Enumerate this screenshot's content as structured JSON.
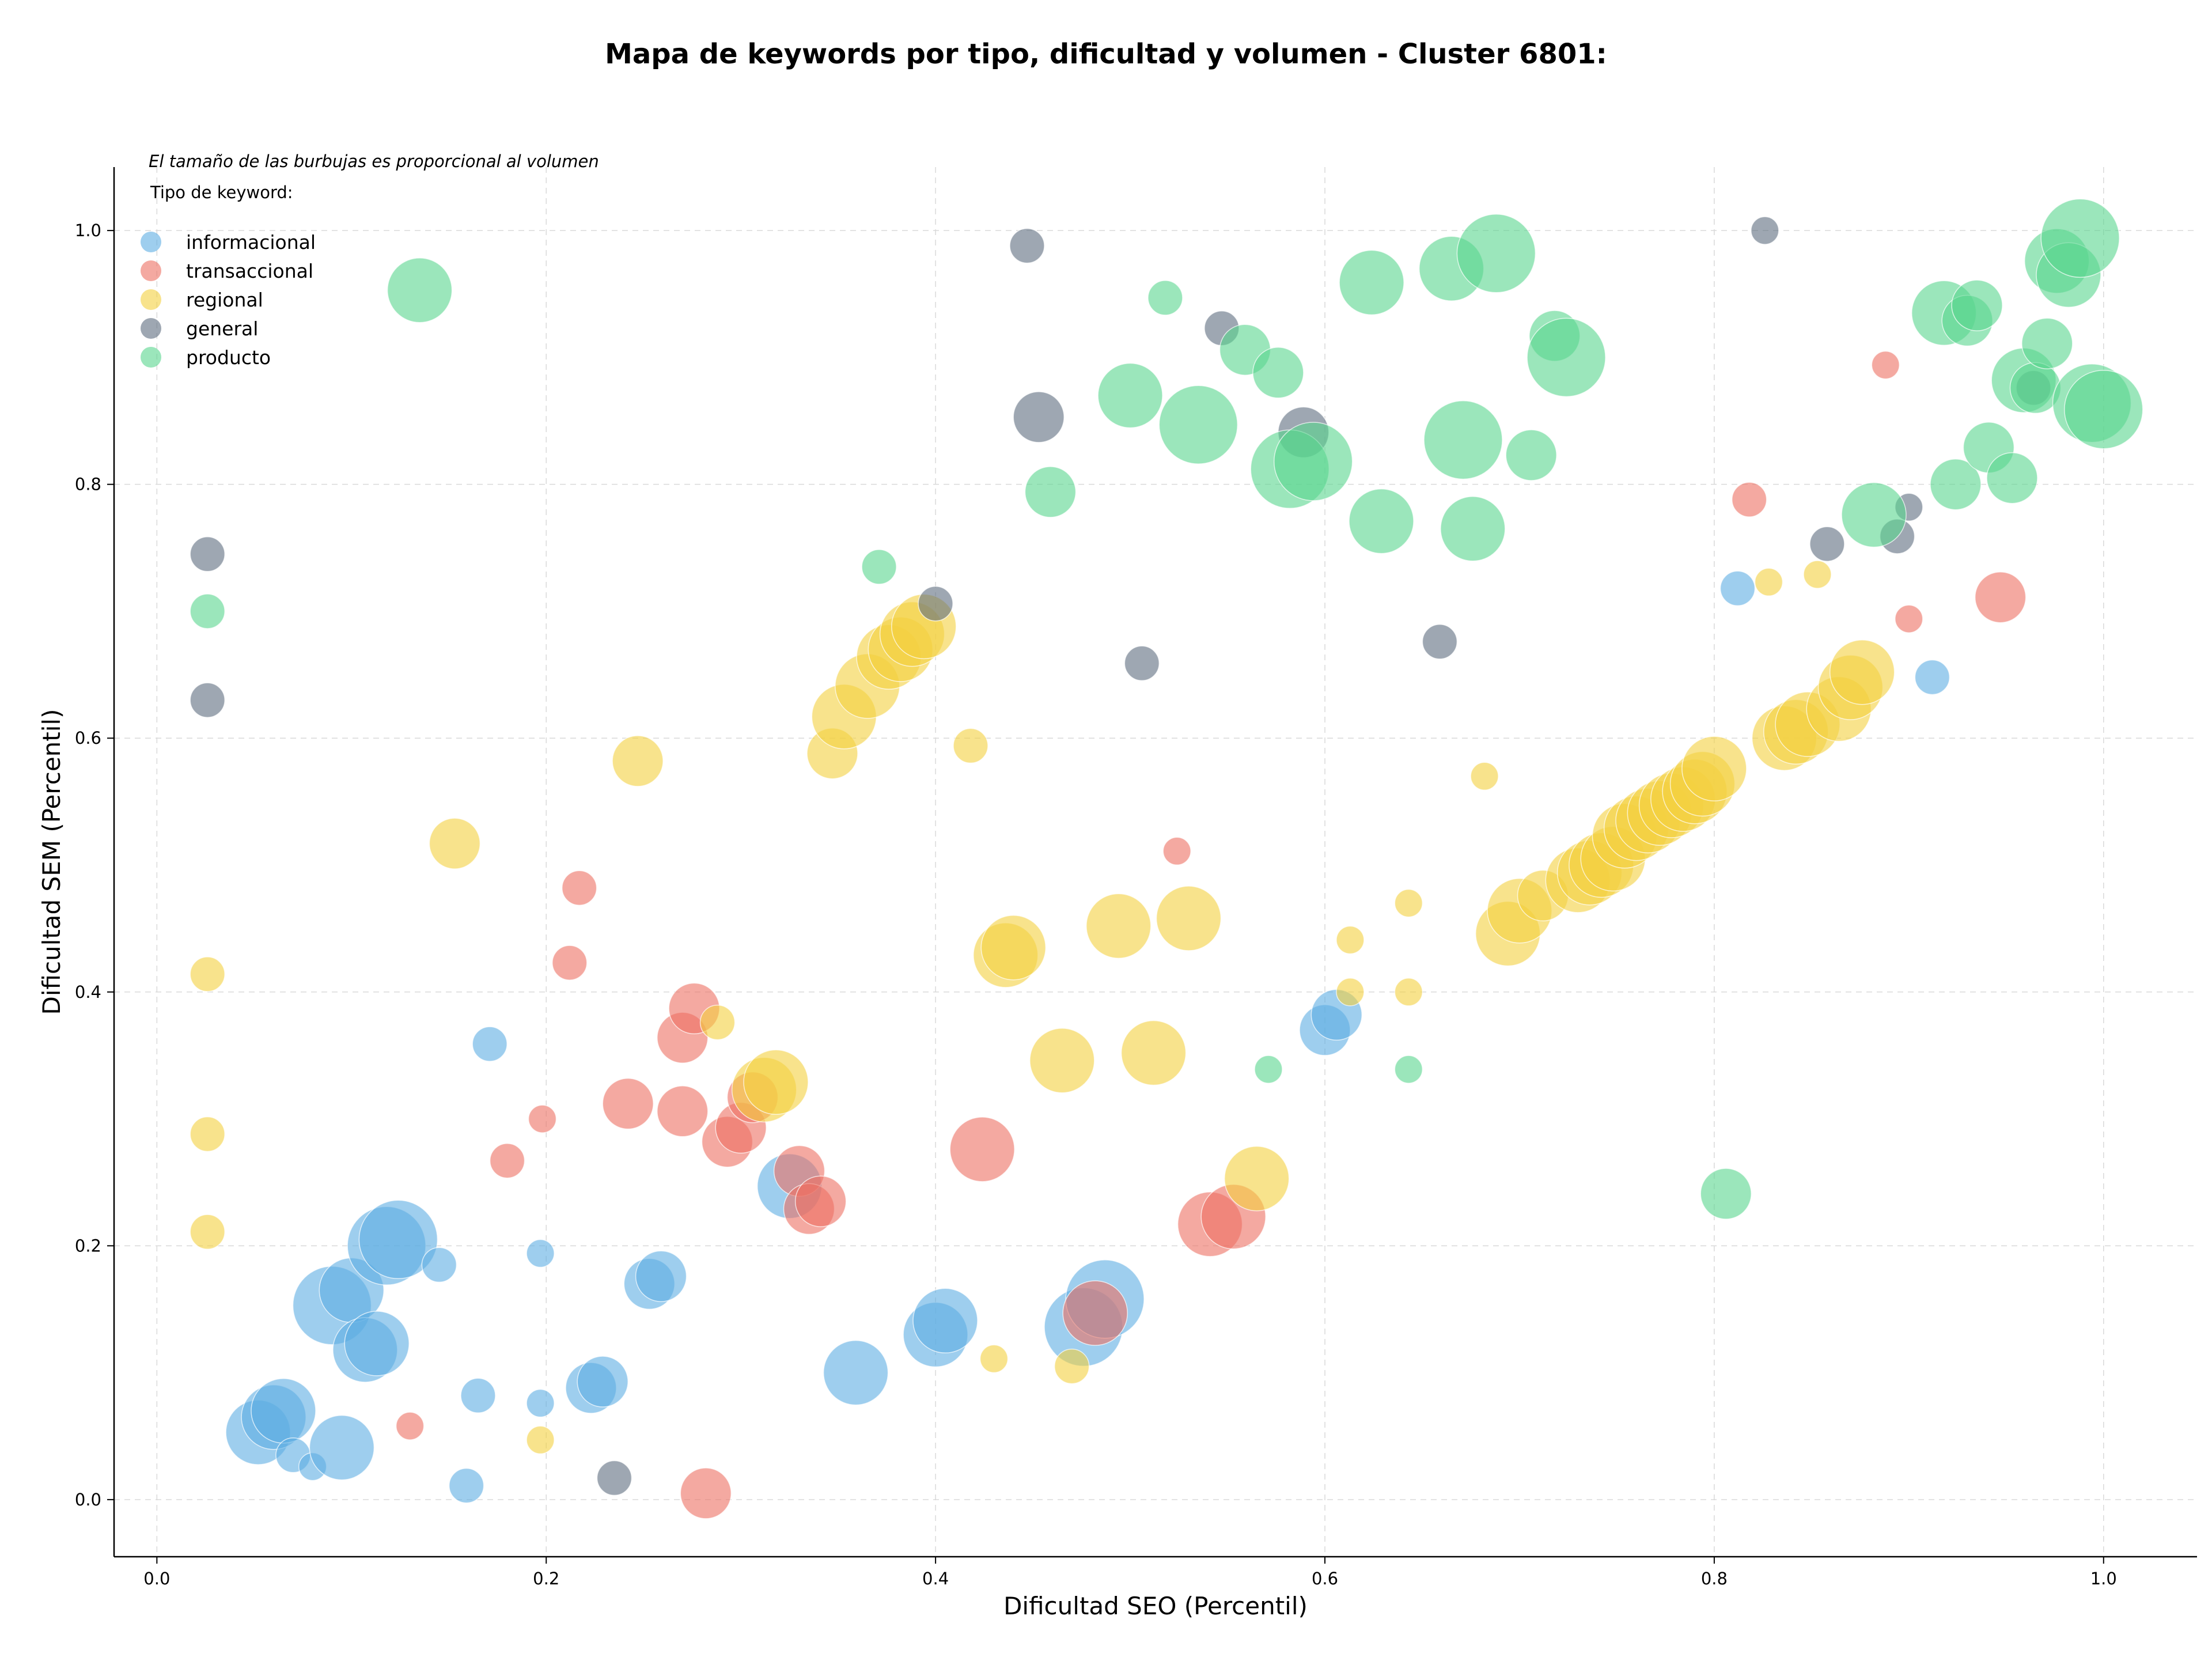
{
  "chart_data": {
    "type": "scatter",
    "title": "Mapa de keywords por tipo, dificultad y volumen - Cluster 6801:",
    "xlabel": "Dificultad SEO (Percentil)",
    "ylabel": "Dificultad SEM (Percentil)",
    "xlim": [
      -0.022,
      1.048
    ],
    "ylim": [
      -0.045,
      1.05
    ],
    "x_ticks": [
      "0.0",
      "0.2",
      "0.4",
      "0.6",
      "0.8",
      "1.0"
    ],
    "y_ticks": [
      "0.0",
      "0.2",
      "0.4",
      "0.6",
      "0.8",
      "1.0"
    ],
    "grid": true,
    "note": "El tamaño de las burbujas es proporcional al volumen",
    "legend_title": "Tipo de keyword:",
    "legend_position": "top-left",
    "size_encoding": "volume",
    "series": [
      {
        "name": "informacional",
        "color": "#5dade2",
        "points": [
          [
            0.09,
            0.153,
            5
          ],
          [
            0.1,
            0.165,
            4
          ],
          [
            0.118,
            0.2,
            5
          ],
          [
            0.124,
            0.205,
            5
          ],
          [
            0.107,
            0.118,
            4
          ],
          [
            0.113,
            0.123,
            4
          ],
          [
            0.052,
            0.053,
            4
          ],
          [
            0.06,
            0.065,
            4
          ],
          [
            0.065,
            0.07,
            4
          ],
          [
            0.07,
            0.035,
            2
          ],
          [
            0.08,
            0.026,
            1
          ],
          [
            0.095,
            0.041,
            4
          ],
          [
            0.145,
            0.185,
            2
          ],
          [
            0.159,
            0.011,
            2
          ],
          [
            0.165,
            0.082,
            2
          ],
          [
            0.171,
            0.359,
            2
          ],
          [
            0.197,
            0.194,
            1
          ],
          [
            0.197,
            0.076,
            1
          ],
          [
            0.223,
            0.088,
            3
          ],
          [
            0.229,
            0.093,
            3
          ],
          [
            0.253,
            0.17,
            3
          ],
          [
            0.259,
            0.176,
            3
          ],
          [
            0.325,
            0.247,
            4
          ],
          [
            0.359,
            0.1,
            4
          ],
          [
            0.4,
            0.13,
            4
          ],
          [
            0.405,
            0.141,
            4
          ],
          [
            0.476,
            0.136,
            5
          ],
          [
            0.487,
            0.158,
            5
          ],
          [
            0.6,
            0.37,
            3
          ],
          [
            0.606,
            0.382,
            3
          ],
          [
            0.812,
            0.718,
            2
          ],
          [
            0.912,
            0.648,
            2
          ]
        ]
      },
      {
        "name": "transaccional",
        "color": "#ec7063",
        "points": [
          [
            0.13,
            0.058,
            1
          ],
          [
            0.18,
            0.267,
            2
          ],
          [
            0.198,
            0.3,
            1
          ],
          [
            0.212,
            0.423,
            2
          ],
          [
            0.217,
            0.482,
            2
          ],
          [
            0.242,
            0.312,
            3
          ],
          [
            0.27,
            0.306,
            3
          ],
          [
            0.27,
            0.364,
            3
          ],
          [
            0.276,
            0.387,
            3
          ],
          [
            0.282,
            0.005,
            3
          ],
          [
            0.293,
            0.282,
            3
          ],
          [
            0.3,
            0.293,
            3
          ],
          [
            0.306,
            0.317,
            3
          ],
          [
            0.33,
            0.259,
            3
          ],
          [
            0.335,
            0.229,
            3
          ],
          [
            0.341,
            0.235,
            3
          ],
          [
            0.424,
            0.276,
            4
          ],
          [
            0.482,
            0.147,
            4
          ],
          [
            0.524,
            0.511,
            1
          ],
          [
            0.541,
            0.217,
            4
          ],
          [
            0.553,
            0.223,
            4
          ],
          [
            0.818,
            0.788,
            2
          ],
          [
            0.888,
            0.894,
            1
          ],
          [
            0.9,
            0.694,
            1
          ],
          [
            0.947,
            0.711,
            3
          ]
        ]
      },
      {
        "name": "regional",
        "color": "#f4d03f",
        "points": [
          [
            0.026,
            0.414,
            2
          ],
          [
            0.026,
            0.288,
            2
          ],
          [
            0.026,
            0.211,
            2
          ],
          [
            0.153,
            0.517,
            3
          ],
          [
            0.197,
            0.047,
            1
          ],
          [
            0.247,
            0.582,
            3
          ],
          [
            0.288,
            0.376,
            2
          ],
          [
            0.312,
            0.323,
            4
          ],
          [
            0.318,
            0.329,
            4
          ],
          [
            0.347,
            0.588,
            3
          ],
          [
            0.353,
            0.617,
            4
          ],
          [
            0.365,
            0.641,
            4
          ],
          [
            0.376,
            0.664,
            4
          ],
          [
            0.382,
            0.67,
            4
          ],
          [
            0.388,
            0.682,
            4
          ],
          [
            0.394,
            0.688,
            4
          ],
          [
            0.418,
            0.594,
            2
          ],
          [
            0.43,
            0.111,
            1
          ],
          [
            0.436,
            0.429,
            4
          ],
          [
            0.44,
            0.435,
            4
          ],
          [
            0.465,
            0.346,
            4
          ],
          [
            0.47,
            0.105,
            2
          ],
          [
            0.494,
            0.452,
            4
          ],
          [
            0.512,
            0.352,
            4
          ],
          [
            0.53,
            0.458,
            4
          ],
          [
            0.565,
            0.253,
            4
          ],
          [
            0.613,
            0.441,
            1
          ],
          [
            0.613,
            0.4,
            1
          ],
          [
            0.643,
            0.47,
            1
          ],
          [
            0.643,
            0.4,
            1
          ],
          [
            0.682,
            0.57,
            1
          ],
          [
            0.694,
            0.446,
            4
          ],
          [
            0.7,
            0.464,
            4
          ],
          [
            0.712,
            0.476,
            3
          ],
          [
            0.73,
            0.488,
            4
          ],
          [
            0.736,
            0.494,
            4
          ],
          [
            0.742,
            0.5,
            4
          ],
          [
            0.748,
            0.505,
            4
          ],
          [
            0.754,
            0.523,
            4
          ],
          [
            0.76,
            0.529,
            4
          ],
          [
            0.766,
            0.535,
            4
          ],
          [
            0.772,
            0.541,
            4
          ],
          [
            0.778,
            0.547,
            4
          ],
          [
            0.784,
            0.552,
            4
          ],
          [
            0.79,
            0.558,
            4
          ],
          [
            0.794,
            0.564,
            4
          ],
          [
            0.8,
            0.576,
            4
          ],
          [
            0.828,
            0.723,
            1
          ],
          [
            0.836,
            0.6,
            4
          ],
          [
            0.842,
            0.605,
            4
          ],
          [
            0.848,
            0.611,
            4
          ],
          [
            0.853,
            0.729,
            1
          ],
          [
            0.864,
            0.623,
            4
          ],
          [
            0.87,
            0.64,
            4
          ],
          [
            0.876,
            0.652,
            4
          ]
        ]
      },
      {
        "name": "general",
        "color": "#5d6d7e",
        "points": [
          [
            0.026,
            0.745,
            2
          ],
          [
            0.026,
            0.63,
            2
          ],
          [
            0.235,
            0.017,
            2
          ],
          [
            0.4,
            0.706,
            2
          ],
          [
            0.447,
            0.988,
            2
          ],
          [
            0.453,
            0.853,
            3
          ],
          [
            0.506,
            0.659,
            2
          ],
          [
            0.547,
            0.923,
            2
          ],
          [
            0.589,
            0.841,
            3
          ],
          [
            0.659,
            0.676,
            2
          ],
          [
            0.826,
            1.0,
            1
          ],
          [
            0.858,
            0.753,
            2
          ],
          [
            0.894,
            0.759,
            2
          ],
          [
            0.9,
            0.782,
            1
          ],
          [
            0.964,
            0.876,
            2
          ]
        ]
      },
      {
        "name": "producto",
        "color": "#58d68d",
        "points": [
          [
            0.026,
            0.7,
            2
          ],
          [
            0.135,
            0.953,
            4
          ],
          [
            0.371,
            0.735,
            2
          ],
          [
            0.459,
            0.794,
            3
          ],
          [
            0.5,
            0.87,
            4
          ],
          [
            0.518,
            0.947,
            2
          ],
          [
            0.535,
            0.847,
            5
          ],
          [
            0.559,
            0.906,
            3
          ],
          [
            0.576,
            0.888,
            3
          ],
          [
            0.571,
            0.339,
            1
          ],
          [
            0.582,
            0.812,
            5
          ],
          [
            0.594,
            0.818,
            5
          ],
          [
            0.624,
            0.959,
            4
          ],
          [
            0.629,
            0.771,
            4
          ],
          [
            0.643,
            0.339,
            1
          ],
          [
            0.665,
            0.97,
            4
          ],
          [
            0.671,
            0.835,
            5
          ],
          [
            0.676,
            0.765,
            4
          ],
          [
            0.688,
            0.982,
            5
          ],
          [
            0.706,
            0.823,
            3
          ],
          [
            0.718,
            0.917,
            3
          ],
          [
            0.724,
            0.9,
            5
          ],
          [
            0.806,
            0.241,
            3
          ],
          [
            0.882,
            0.776,
            4
          ],
          [
            0.918,
            0.935,
            4
          ],
          [
            0.924,
            0.8,
            3
          ],
          [
            0.93,
            0.929,
            3
          ],
          [
            0.935,
            0.941,
            3
          ],
          [
            0.941,
            0.829,
            3
          ],
          [
            0.953,
            0.805,
            3
          ],
          [
            0.959,
            0.882,
            4
          ],
          [
            0.965,
            0.876,
            3
          ],
          [
            0.971,
            0.911,
            3
          ],
          [
            0.976,
            0.976,
            4
          ],
          [
            0.982,
            0.965,
            4
          ],
          [
            0.988,
            0.994,
            5
          ],
          [
            0.994,
            0.864,
            5
          ],
          [
            1.0,
            0.859,
            5
          ]
        ]
      }
    ]
  }
}
